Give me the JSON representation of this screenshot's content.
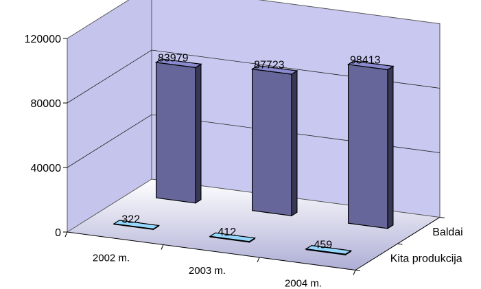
{
  "chart_data": {
    "type": "bar",
    "title": "",
    "xlabel": "",
    "ylabel": "",
    "categories": [
      "2002 m.",
      "2003 m.",
      "2004 m."
    ],
    "series": [
      {
        "name": "Baldai",
        "values": [
          83979,
          87723,
          98413
        ],
        "color": "#66669a"
      },
      {
        "name": "Kita produkcija",
        "values": [
          322,
          412,
          459
        ],
        "color": "#6f9fc8"
      }
    ],
    "ylim": [
      0,
      120000
    ],
    "yticks": [
      0,
      40000,
      80000,
      120000
    ],
    "grid": true,
    "view": "3d"
  }
}
